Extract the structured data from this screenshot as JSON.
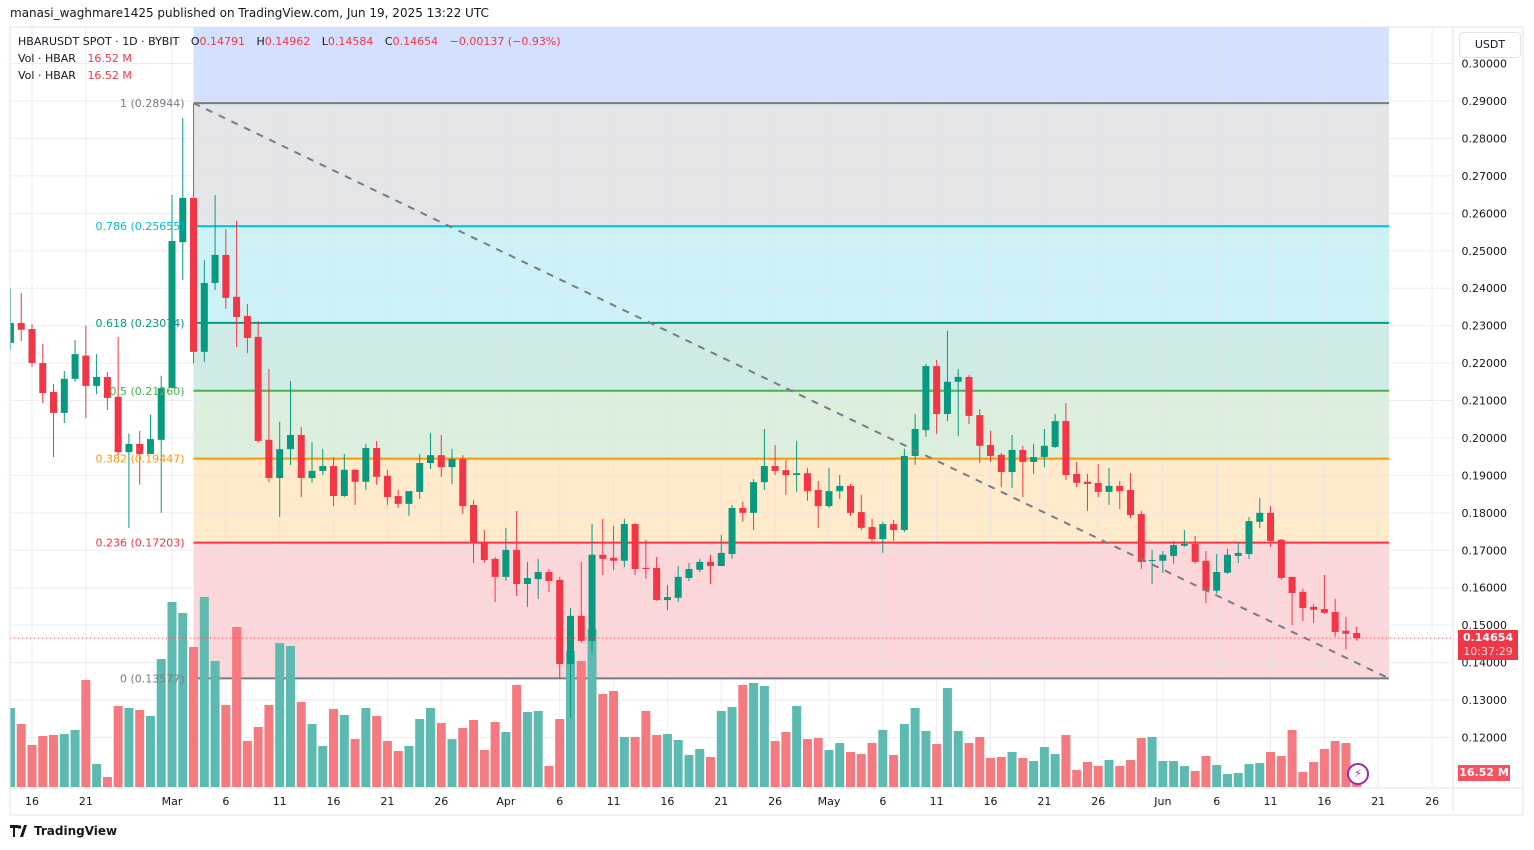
{
  "publish_line": "manasi_waghmare1425 published on TradingView.com, Jun 19, 2025 13:22 UTC",
  "legend": {
    "symbol": "HBARUSDT SPOT · 1D · BYBIT",
    "open_label": "O",
    "open": "0.14791",
    "high_label": "H",
    "high": "0.14962",
    "low_label": "L",
    "low": "0.14584",
    "close_label": "C",
    "close": "0.14654",
    "change": "−0.00137 (−0.93%)",
    "vol1_label": "Vol · HBAR",
    "vol1_value": "16.52 M",
    "vol2_label": "Vol · HBAR",
    "vol2_value": "16.52 M"
  },
  "price_axis": {
    "unit": "USDT",
    "current_price": "0.14654",
    "countdown": "10:37:29",
    "volume_tag": "16.52 M"
  },
  "branding": {
    "logo_text": "TradingView"
  },
  "colors": {
    "up": "#089981",
    "down": "#f23645",
    "vol_up": "#5cbab0",
    "vol_down": "#f47a7f",
    "trendline": "#787b86",
    "extension_fill": "#2962ff"
  },
  "chart_data": {
    "type": "candlestick",
    "title": "HBARUSDT SPOT · 1D · BYBIT",
    "ylim": [
      0.1,
      0.3
    ],
    "grid": true,
    "y_ticks": [
      "0.30000",
      "0.29000",
      "0.28000",
      "0.27000",
      "0.26000",
      "0.25000",
      "0.24000",
      "0.23000",
      "0.22000",
      "0.21000",
      "0.20000",
      "0.19000",
      "0.18000",
      "0.17000",
      "0.16000",
      "0.15000",
      "0.14000",
      "0.13000",
      "0.12000"
    ],
    "x_ticks": [
      {
        "label": "16",
        "date": "2025-02-16"
      },
      {
        "label": "21",
        "date": "2025-02-21"
      },
      {
        "label": "Mar",
        "date": "2025-03-01"
      },
      {
        "label": "6",
        "date": "2025-03-06"
      },
      {
        "label": "11",
        "date": "2025-03-11"
      },
      {
        "label": "16",
        "date": "2025-03-16"
      },
      {
        "label": "21",
        "date": "2025-03-21"
      },
      {
        "label": "26",
        "date": "2025-03-26"
      },
      {
        "label": "Apr",
        "date": "2025-04-01"
      },
      {
        "label": "6",
        "date": "2025-04-06"
      },
      {
        "label": "11",
        "date": "2025-04-11"
      },
      {
        "label": "16",
        "date": "2025-04-16"
      },
      {
        "label": "21",
        "date": "2025-04-21"
      },
      {
        "label": "26",
        "date": "2025-04-26"
      },
      {
        "label": "May",
        "date": "2025-05-01"
      },
      {
        "label": "6",
        "date": "2025-05-06"
      },
      {
        "label": "11",
        "date": "2025-05-11"
      },
      {
        "label": "16",
        "date": "2025-05-16"
      },
      {
        "label": "21",
        "date": "2025-05-21"
      },
      {
        "label": "26",
        "date": "2025-05-26"
      },
      {
        "label": "Jun",
        "date": "2025-06-01"
      },
      {
        "label": "6",
        "date": "2025-06-06"
      },
      {
        "label": "11",
        "date": "2025-06-11"
      },
      {
        "label": "16",
        "date": "2025-06-16"
      },
      {
        "label": "21",
        "date": "2025-06-21"
      },
      {
        "label": "26",
        "date": "2025-06-26"
      }
    ],
    "fib_retracement": {
      "start_date": "2025-03-03",
      "end_date": "2025-06-22",
      "levels": [
        {
          "level": 1,
          "price": 0.28944,
          "label": "1 (0.28944)",
          "color": "#787b86"
        },
        {
          "level": 0.786,
          "price": 0.25655,
          "label": "0.786 (0.25655)",
          "color": "#00bcd4"
        },
        {
          "level": 0.618,
          "price": 0.23074,
          "label": "0.618 (0.23074)",
          "color": "#089981"
        },
        {
          "level": 0.5,
          "price": 0.2126,
          "label": "0.5 (0.21260)",
          "color": "#4caf50"
        },
        {
          "level": 0.382,
          "price": 0.19447,
          "label": "0.382 (0.19447)",
          "color": "#ff9800"
        },
        {
          "level": 0.236,
          "price": 0.17203,
          "label": "0.236 (0.17203)",
          "color": "#f23645"
        },
        {
          "level": 0,
          "price": 0.13577,
          "label": "0 (0.13577)",
          "color": "#787b86"
        }
      ]
    },
    "trendline": {
      "from": {
        "date": "2025-03-03",
        "price": 0.28944
      },
      "to": {
        "date": "2025-06-22",
        "price": 0.13577
      },
      "style": "dashed"
    },
    "columns": [
      "date",
      "open",
      "high",
      "low",
      "close",
      "volume_M"
    ],
    "candles": [
      [
        "2025-02-14",
        0.2254,
        0.24,
        0.2235,
        0.2307,
        93.2
      ],
      [
        "2025-02-15",
        0.2307,
        0.2387,
        0.2259,
        0.2289,
        74.3
      ],
      [
        "2025-02-16",
        0.2291,
        0.2304,
        0.2189,
        0.22,
        49.6
      ],
      [
        "2025-02-17",
        0.22,
        0.2251,
        0.2093,
        0.212,
        60.2
      ],
      [
        "2025-02-18",
        0.2123,
        0.2144,
        0.1949,
        0.2067,
        61.4
      ],
      [
        "2025-02-19",
        0.2067,
        0.2179,
        0.204,
        0.2158,
        62.5
      ],
      [
        "2025-02-20",
        0.2158,
        0.2262,
        0.215,
        0.2224,
        67.3
      ],
      [
        "2025-02-21",
        0.222,
        0.23,
        0.2053,
        0.2139,
        126.3
      ],
      [
        "2025-02-22",
        0.2139,
        0.2224,
        0.2117,
        0.2163,
        27.1
      ],
      [
        "2025-02-23",
        0.2163,
        0.2176,
        0.2075,
        0.2107,
        11.8
      ],
      [
        "2025-02-24",
        0.211,
        0.227,
        0.1955,
        0.1962,
        95.6
      ],
      [
        "2025-02-25",
        0.1962,
        0.2012,
        0.176,
        0.1984,
        93.2
      ],
      [
        "2025-02-26",
        0.1984,
        0.2019,
        0.1875,
        0.1957,
        90.9
      ],
      [
        "2025-02-27",
        0.1957,
        0.2062,
        0.1957,
        0.1997,
        83.8
      ],
      [
        "2025-02-28",
        0.1995,
        0.2166,
        0.18,
        0.2133,
        151.0
      ],
      [
        "2025-03-01",
        0.2133,
        0.2649,
        0.2133,
        0.2526,
        218.3
      ],
      [
        "2025-03-02",
        0.2523,
        0.2855,
        0.2422,
        0.2641,
        205.3
      ],
      [
        "2025-03-03",
        0.2641,
        0.2894,
        0.22,
        0.223,
        165.2
      ],
      [
        "2025-03-04",
        0.223,
        0.2475,
        0.2203,
        0.2414,
        224.2
      ],
      [
        "2025-03-05",
        0.2414,
        0.2649,
        0.2395,
        0.2489,
        148.7
      ],
      [
        "2025-03-06",
        0.2489,
        0.2558,
        0.2345,
        0.2374,
        96.8
      ],
      [
        "2025-03-07",
        0.2377,
        0.258,
        0.2243,
        0.2323,
        188.8
      ],
      [
        "2025-03-08",
        0.2326,
        0.2358,
        0.2227,
        0.2267,
        54.3
      ],
      [
        "2025-03-09",
        0.227,
        0.2312,
        0.1987,
        0.1992,
        70.8
      ],
      [
        "2025-03-10",
        0.1995,
        0.2184,
        0.1882,
        0.1893,
        96.8
      ],
      [
        "2025-03-11",
        0.1893,
        0.2043,
        0.1789,
        0.197,
        169.9
      ],
      [
        "2025-03-12",
        0.197,
        0.2152,
        0.1928,
        0.2008,
        166.4
      ],
      [
        "2025-03-13",
        0.2008,
        0.2029,
        0.1842,
        0.1893,
        100.3
      ],
      [
        "2025-03-14",
        0.1893,
        0.1989,
        0.188,
        0.1912,
        74.3
      ],
      [
        "2025-03-15",
        0.1912,
        0.1971,
        0.1901,
        0.1925,
        48.4
      ],
      [
        "2025-03-16",
        0.1925,
        0.1949,
        0.1818,
        0.1845,
        92.0
      ],
      [
        "2025-03-17",
        0.1845,
        0.1957,
        0.1842,
        0.1915,
        85.0
      ],
      [
        "2025-03-18",
        0.1915,
        0.1917,
        0.1821,
        0.1883,
        56.6
      ],
      [
        "2025-03-19",
        0.1883,
        0.1984,
        0.1861,
        0.1973,
        93.2
      ],
      [
        "2025-03-20",
        0.1973,
        0.1992,
        0.1875,
        0.1896,
        83.8
      ],
      [
        "2025-03-21",
        0.1899,
        0.1915,
        0.1821,
        0.1842,
        54.3
      ],
      [
        "2025-03-22",
        0.1845,
        0.1861,
        0.1813,
        0.1824,
        42.5
      ],
      [
        "2025-03-23",
        0.1824,
        0.1858,
        0.1792,
        0.1858,
        48.4
      ],
      [
        "2025-03-24",
        0.1856,
        0.1957,
        0.1837,
        0.1933,
        80.2
      ],
      [
        "2025-03-25",
        0.1933,
        0.2013,
        0.1917,
        0.1954,
        93.2
      ],
      [
        "2025-03-26",
        0.1954,
        0.2008,
        0.1896,
        0.1922,
        75.5
      ],
      [
        "2025-03-27",
        0.1922,
        0.1971,
        0.1877,
        0.1944,
        56.6
      ],
      [
        "2025-03-28",
        0.1944,
        0.1954,
        0.1797,
        0.1818,
        69.6
      ],
      [
        "2025-03-29",
        0.1821,
        0.1834,
        0.1666,
        0.1719,
        79.1
      ],
      [
        "2025-03-30",
        0.1719,
        0.1754,
        0.1666,
        0.1674,
        43.7
      ],
      [
        "2025-03-31",
        0.1677,
        0.1682,
        0.1562,
        0.1629,
        76.7
      ],
      [
        "2025-04-01",
        0.1629,
        0.176,
        0.1618,
        0.1701,
        64.9
      ],
      [
        "2025-04-02",
        0.1701,
        0.1805,
        0.1578,
        0.161,
        120.4
      ],
      [
        "2025-04-03",
        0.161,
        0.1669,
        0.1549,
        0.1626,
        88.5
      ],
      [
        "2025-04-04",
        0.1623,
        0.1677,
        0.157,
        0.1642,
        89.7
      ],
      [
        "2025-04-05",
        0.1642,
        0.165,
        0.1589,
        0.1618,
        24.8
      ],
      [
        "2025-04-06",
        0.1621,
        0.1629,
        0.1356,
        0.1396,
        80.2
      ],
      [
        "2025-04-07",
        0.1396,
        0.1546,
        0.1252,
        0.1525,
        160.5
      ],
      [
        "2025-04-08",
        0.1525,
        0.1669,
        0.1453,
        0.1458,
        148.7
      ],
      [
        "2025-04-09",
        0.1458,
        0.1771,
        0.1426,
        0.1688,
        186.4
      ],
      [
        "2025-04-10",
        0.1688,
        0.1784,
        0.1634,
        0.1677,
        109.7
      ],
      [
        "2025-04-11",
        0.168,
        0.1765,
        0.1647,
        0.1672,
        113.3
      ],
      [
        "2025-04-12",
        0.1672,
        0.1784,
        0.1655,
        0.177,
        59.0
      ],
      [
        "2025-04-13",
        0.177,
        0.1773,
        0.1634,
        0.165,
        59.0
      ],
      [
        "2025-04-14",
        0.1653,
        0.1728,
        0.1624,
        0.165,
        89.7
      ],
      [
        "2025-04-15",
        0.1653,
        0.1682,
        0.1565,
        0.1567,
        61.4
      ],
      [
        "2025-04-16",
        0.1567,
        0.1607,
        0.154,
        0.1575,
        62.5
      ],
      [
        "2025-04-17",
        0.1573,
        0.1658,
        0.1562,
        0.1629,
        55.5
      ],
      [
        "2025-04-18",
        0.1626,
        0.1666,
        0.1618,
        0.165,
        37.8
      ],
      [
        "2025-04-19",
        0.1648,
        0.1677,
        0.1642,
        0.1669,
        44.8
      ],
      [
        "2025-04-20",
        0.1669,
        0.1688,
        0.161,
        0.1658,
        35.4
      ],
      [
        "2025-04-21",
        0.1658,
        0.1741,
        0.1658,
        0.1693,
        89.7
      ],
      [
        "2025-04-22",
        0.169,
        0.1821,
        0.1677,
        0.1813,
        94.4
      ],
      [
        "2025-04-23",
        0.1813,
        0.183,
        0.1776,
        0.18,
        120.4
      ],
      [
        "2025-04-24",
        0.18,
        0.189,
        0.1754,
        0.1882,
        122.7
      ],
      [
        "2025-04-25",
        0.1882,
        0.2024,
        0.1861,
        0.1925,
        119.2
      ],
      [
        "2025-04-26",
        0.1925,
        0.1981,
        0.1901,
        0.1912,
        54.3
      ],
      [
        "2025-04-27",
        0.1914,
        0.1941,
        0.1848,
        0.1901,
        64.9
      ],
      [
        "2025-04-28",
        0.1901,
        0.1992,
        0.1856,
        0.1906,
        95.6
      ],
      [
        "2025-04-29",
        0.1906,
        0.192,
        0.1832,
        0.1858,
        56.6
      ],
      [
        "2025-04-30",
        0.1861,
        0.1885,
        0.176,
        0.1818,
        57.8
      ],
      [
        "2025-05-01",
        0.1818,
        0.192,
        0.1813,
        0.1858,
        43.7
      ],
      [
        "2025-05-02",
        0.1858,
        0.1901,
        0.1837,
        0.1872,
        51.9
      ],
      [
        "2025-05-03",
        0.1872,
        0.1877,
        0.1792,
        0.18,
        41.3
      ],
      [
        "2025-05-04",
        0.1802,
        0.1848,
        0.1754,
        0.176,
        38.9
      ],
      [
        "2025-05-05",
        0.1762,
        0.1784,
        0.1722,
        0.173,
        51.9
      ],
      [
        "2025-05-06",
        0.173,
        0.1776,
        0.1693,
        0.177,
        67.3
      ],
      [
        "2025-05-07",
        0.177,
        0.1781,
        0.1725,
        0.1754,
        37.8
      ],
      [
        "2025-05-08",
        0.1754,
        0.1971,
        0.1749,
        0.1952,
        74.3
      ],
      [
        "2025-05-09",
        0.1952,
        0.2064,
        0.1928,
        0.2024,
        93.2
      ],
      [
        "2025-05-10",
        0.2021,
        0.2198,
        0.2003,
        0.2192,
        66.1
      ],
      [
        "2025-05-11",
        0.2192,
        0.2208,
        0.2011,
        0.2064,
        50.7
      ],
      [
        "2025-05-12",
        0.2064,
        0.2286,
        0.2045,
        0.215,
        116.8
      ],
      [
        "2025-05-13",
        0.215,
        0.2184,
        0.2005,
        0.2163,
        66.1
      ],
      [
        "2025-05-14",
        0.2163,
        0.2168,
        0.2037,
        0.2059,
        51.9
      ],
      [
        "2025-05-15",
        0.2061,
        0.2077,
        0.1933,
        0.1979,
        59.0
      ],
      [
        "2025-05-16",
        0.1981,
        0.2019,
        0.1936,
        0.1952,
        34.2
      ],
      [
        "2025-05-17",
        0.1955,
        0.196,
        0.1869,
        0.1909,
        35.4
      ],
      [
        "2025-05-18",
        0.1909,
        0.2008,
        0.1866,
        0.1968,
        41.3
      ],
      [
        "2025-05-19",
        0.1968,
        0.1979,
        0.1842,
        0.1936,
        34.2
      ],
      [
        "2025-05-20",
        0.1936,
        0.1984,
        0.1904,
        0.1949,
        30.7
      ],
      [
        "2025-05-21",
        0.1949,
        0.2024,
        0.1922,
        0.1979,
        47.2
      ],
      [
        "2025-05-22",
        0.1976,
        0.2064,
        0.1973,
        0.2045,
        38.9
      ],
      [
        "2025-05-23",
        0.2045,
        0.2093,
        0.1888,
        0.1901,
        61.4
      ],
      [
        "2025-05-24",
        0.1904,
        0.1936,
        0.1869,
        0.188,
        20.1
      ],
      [
        "2025-05-25",
        0.1883,
        0.1904,
        0.1805,
        0.1877,
        29.5
      ],
      [
        "2025-05-26",
        0.188,
        0.193,
        0.1842,
        0.1856,
        24.8
      ],
      [
        "2025-05-27",
        0.1856,
        0.192,
        0.1821,
        0.1872,
        31.9
      ],
      [
        "2025-05-28",
        0.1872,
        0.1885,
        0.181,
        0.1858,
        24.8
      ],
      [
        "2025-05-29",
        0.1861,
        0.1906,
        0.1786,
        0.1794,
        31.9
      ],
      [
        "2025-05-30",
        0.1797,
        0.1805,
        0.165,
        0.1669,
        57.8
      ],
      [
        "2025-05-31",
        0.1672,
        0.1701,
        0.161,
        0.1674,
        59.0
      ],
      [
        "2025-06-01",
        0.1672,
        0.1698,
        0.164,
        0.1688,
        30.7
      ],
      [
        "2025-06-02",
        0.1685,
        0.1725,
        0.1664,
        0.1714,
        30.7
      ],
      [
        "2025-06-03",
        0.1712,
        0.1754,
        0.1709,
        0.1717,
        24.8
      ],
      [
        "2025-06-04",
        0.1717,
        0.1738,
        0.1664,
        0.1669,
        18.9
      ],
      [
        "2025-06-05",
        0.1672,
        0.1698,
        0.1559,
        0.1592,
        36.6
      ],
      [
        "2025-06-06",
        0.1592,
        0.169,
        0.1584,
        0.1642,
        26.0
      ],
      [
        "2025-06-07",
        0.164,
        0.1704,
        0.1637,
        0.1688,
        15.3
      ],
      [
        "2025-06-08",
        0.1685,
        0.1722,
        0.1666,
        0.1693,
        16.5
      ],
      [
        "2025-06-09",
        0.169,
        0.1789,
        0.1677,
        0.1778,
        27.1
      ],
      [
        "2025-06-10",
        0.1776,
        0.184,
        0.176,
        0.18,
        28.3
      ],
      [
        "2025-06-11",
        0.18,
        0.1818,
        0.1709,
        0.1725,
        41.3
      ],
      [
        "2025-06-12",
        0.1728,
        0.173,
        0.1621,
        0.1626,
        36.6
      ],
      [
        "2025-06-13",
        0.1629,
        0.1629,
        0.15,
        0.1586,
        67.3
      ],
      [
        "2025-06-14",
        0.1589,
        0.1597,
        0.1511,
        0.1546,
        17.7
      ],
      [
        "2025-06-15",
        0.1549,
        0.1557,
        0.1506,
        0.1541,
        29.5
      ],
      [
        "2025-06-16",
        0.1543,
        0.1634,
        0.153,
        0.1533,
        44.8
      ],
      [
        "2025-06-17",
        0.1535,
        0.157,
        0.1469,
        0.1482,
        54.3
      ],
      [
        "2025-06-18",
        0.1485,
        0.1522,
        0.1436,
        0.1477,
        51.9
      ],
      [
        "2025-06-19",
        0.14791,
        0.14962,
        0.14584,
        0.14654,
        16.52
      ]
    ]
  }
}
